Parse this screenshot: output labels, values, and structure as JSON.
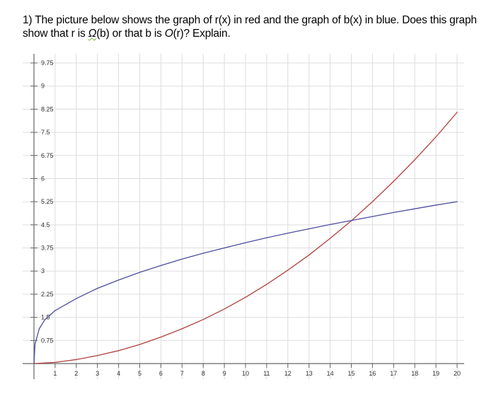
{
  "question": {
    "part1": "1) The picture below shows the graph of r(x) in red and the graph of b(x) in blue. Does this graph show that r is ",
    "omega": "Ω",
    "part2": "(b) or that b is ",
    "bigo": "O",
    "part3": "(r)? Explain."
  },
  "chart_data": {
    "type": "line",
    "title": "",
    "xlabel": "",
    "ylabel": "",
    "xlim": [
      0,
      20
    ],
    "ylim": [
      0,
      10
    ],
    "grid": true,
    "x_ticks": [
      "1",
      "2",
      "3",
      "4",
      "5",
      "6",
      "7",
      "8",
      "9",
      "10",
      "11",
      "12",
      "13",
      "14",
      "15",
      "16",
      "17",
      "18",
      "19",
      "20"
    ],
    "y_ticks": [
      "0.75",
      "1.5",
      "2.25",
      "3",
      "3.75",
      "4.5",
      "5.25",
      "6",
      "6.75",
      "7.5",
      "8.25",
      "9",
      "9.75"
    ],
    "series": [
      {
        "color": "#b0413e",
        "x": [
          0,
          1,
          2,
          3,
          4,
          5,
          6,
          7,
          8,
          9,
          10,
          11,
          12,
          13,
          14,
          15,
          16,
          17,
          18,
          19,
          20
        ],
        "y": [
          0,
          0.04,
          0.13,
          0.26,
          0.42,
          0.62,
          0.86,
          1.13,
          1.43,
          1.77,
          2.15,
          2.57,
          3.03,
          3.52,
          4.06,
          4.63,
          5.25,
          5.91,
          6.61,
          7.35,
          8.15
        ]
      },
      {
        "color": "#4d4e9e",
        "x": [
          0,
          0.05,
          0.25,
          0.5,
          1,
          2,
          3,
          4,
          5,
          6,
          7,
          8,
          9,
          10,
          11,
          12,
          13,
          14,
          15,
          16,
          17,
          18,
          19,
          20
        ],
        "y": [
          0,
          0.63,
          1.13,
          1.41,
          1.72,
          2.11,
          2.44,
          2.71,
          2.96,
          3.18,
          3.39,
          3.58,
          3.75,
          3.92,
          4.08,
          4.23,
          4.37,
          4.51,
          4.64,
          4.77,
          4.9,
          5.02,
          5.14,
          5.25
        ]
      }
    ]
  }
}
